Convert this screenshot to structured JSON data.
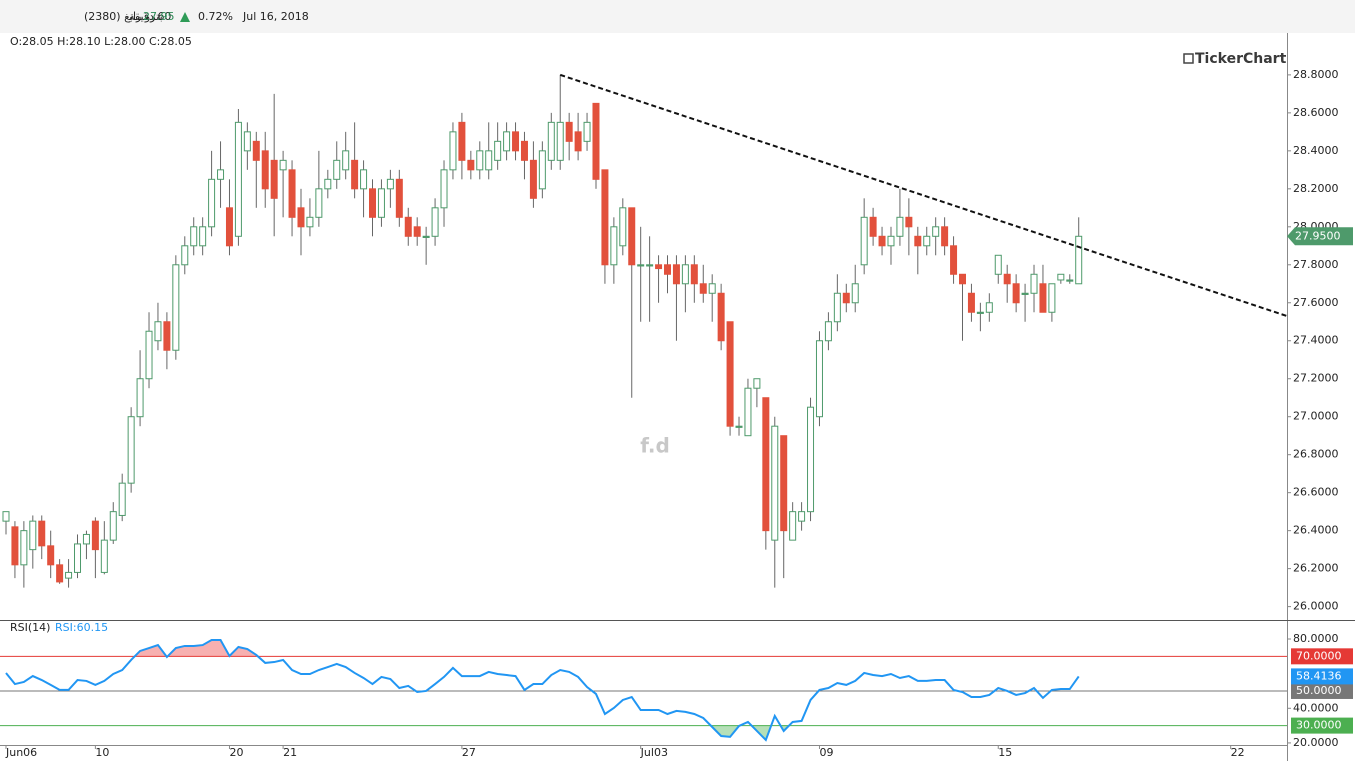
{
  "header": {
    "symbol": "بترو رابغ (2380)",
    "interval": "60 دقيقة",
    "last": "27.95",
    "change": "0.72%",
    "date": "Jul 16, 2018",
    "ohlc": "O:28.05 H:28.10 L:28.00 C:28.05",
    "brand": "TickerChart"
  },
  "chart_data": [
    {
      "type": "candlestick",
      "annotation": "f.d",
      "up_color": "#4e9a6b",
      "down_color": "#e2513c",
      "last_label": "27.9500",
      "x": [
        0,
        1,
        2,
        3,
        4,
        5,
        6,
        7,
        8,
        9,
        10,
        11,
        12,
        13,
        14,
        15,
        16,
        17,
        18,
        19,
        20,
        21,
        22,
        23,
        24,
        25,
        26,
        27,
        28,
        29,
        30,
        31,
        32,
        33,
        34,
        35,
        36,
        37,
        38,
        39,
        40,
        41,
        42,
        43,
        44,
        45,
        46,
        47,
        48,
        49,
        50,
        51,
        52,
        53,
        54,
        55,
        56,
        57,
        58,
        59,
        60,
        61,
        62,
        63,
        64,
        65,
        66,
        67,
        68,
        69,
        70,
        71,
        72,
        73,
        74,
        75,
        76,
        77,
        78,
        79,
        80,
        81,
        82,
        83,
        84,
        85,
        86,
        87,
        88,
        89,
        90,
        91,
        92,
        93,
        94,
        95,
        96,
        97,
        98,
        99,
        100,
        101,
        102,
        103,
        104,
        105,
        106,
        107,
        108,
        109,
        110,
        111,
        112,
        113,
        114,
        115,
        116,
        117,
        118,
        119,
        120
      ],
      "open": [
        26.45,
        26.42,
        26.22,
        26.3,
        26.45,
        26.32,
        26.22,
        26.15,
        26.18,
        26.33,
        26.45,
        26.18,
        26.35,
        26.48,
        26.65,
        27.0,
        27.2,
        27.4,
        27.5,
        27.35,
        27.8,
        27.9,
        27.9,
        28.0,
        28.25,
        28.1,
        27.95,
        28.4,
        28.45,
        28.4,
        28.35,
        28.3,
        28.3,
        28.1,
        28.0,
        28.05,
        28.2,
        28.25,
        28.3,
        28.35,
        28.2,
        28.2,
        28.05,
        28.2,
        28.25,
        28.05,
        28.0,
        27.95,
        27.95,
        28.1,
        28.3,
        28.55,
        28.35,
        28.3,
        28.3,
        28.35,
        28.4,
        28.5,
        28.45,
        28.35,
        28.2,
        28.35,
        28.35,
        28.55,
        28.5,
        28.45,
        28.65,
        28.3,
        27.8,
        27.9,
        28.1,
        27.8,
        27.8,
        27.8,
        27.8,
        27.8,
        27.7,
        27.8,
        27.7,
        27.65,
        27.65,
        27.5,
        26.95,
        26.9,
        27.15,
        27.1,
        26.35,
        26.9,
        26.35,
        26.45,
        26.5,
        27.0,
        27.4,
        27.5,
        27.65,
        27.6,
        27.8,
        28.05,
        27.95,
        27.9,
        27.95,
        28.05,
        27.95,
        27.9,
        27.95,
        28.0,
        27.9,
        27.75,
        27.65,
        27.55,
        27.55,
        27.75,
        27.75,
        27.7,
        27.65,
        27.65,
        27.7,
        27.55,
        27.72,
        27.72,
        27.7
      ],
      "high": [
        26.5,
        26.45,
        26.45,
        26.48,
        26.48,
        26.4,
        26.25,
        26.25,
        26.38,
        26.4,
        26.47,
        26.45,
        26.55,
        26.7,
        27.05,
        27.35,
        27.55,
        27.6,
        27.55,
        27.85,
        27.95,
        28.05,
        28.05,
        28.4,
        28.45,
        28.25,
        28.62,
        28.55,
        28.5,
        28.5,
        28.7,
        28.4,
        28.35,
        28.2,
        28.15,
        28.4,
        28.3,
        28.45,
        28.5,
        28.55,
        28.35,
        28.25,
        28.25,
        28.3,
        28.3,
        28.1,
        28.05,
        28.0,
        28.15,
        28.35,
        28.55,
        28.6,
        28.4,
        28.45,
        28.55,
        28.55,
        28.55,
        28.55,
        28.5,
        28.45,
        28.45,
        28.6,
        28.8,
        28.6,
        28.6,
        28.6,
        28.65,
        28.3,
        28.05,
        28.15,
        28.1,
        28.0,
        27.95,
        27.85,
        27.85,
        27.85,
        27.85,
        27.85,
        27.8,
        27.75,
        27.7,
        27.5,
        27.0,
        27.2,
        27.2,
        27.1,
        27.0,
        26.9,
        26.55,
        26.55,
        27.1,
        27.45,
        27.55,
        27.75,
        27.7,
        27.8,
        28.15,
        28.1,
        28.0,
        28.0,
        28.2,
        28.15,
        28.0,
        28.0,
        28.05,
        28.05,
        27.95,
        27.75,
        27.7,
        27.6,
        27.65,
        27.85,
        27.8,
        27.75,
        27.7,
        27.8,
        27.8,
        27.7,
        27.75,
        27.75,
        28.05
      ],
      "low": [
        26.38,
        26.15,
        26.1,
        26.2,
        26.25,
        26.15,
        26.12,
        26.1,
        26.15,
        26.25,
        26.15,
        26.17,
        26.33,
        26.45,
        26.6,
        26.95,
        27.15,
        27.35,
        27.25,
        27.3,
        27.75,
        27.85,
        27.85,
        27.95,
        28.1,
        27.85,
        27.9,
        28.3,
        28.1,
        28.1,
        27.95,
        28.05,
        27.95,
        27.85,
        27.95,
        28.0,
        28.15,
        28.2,
        28.25,
        28.15,
        28.05,
        27.95,
        28.0,
        28.1,
        28.0,
        27.9,
        27.9,
        27.8,
        27.9,
        28.0,
        28.25,
        28.25,
        28.25,
        28.25,
        28.25,
        28.3,
        28.35,
        28.35,
        28.25,
        28.1,
        28.15,
        28.3,
        28.3,
        28.35,
        28.35,
        28.4,
        28.2,
        27.7,
        27.7,
        27.85,
        27.1,
        27.5,
        27.5,
        27.6,
        27.65,
        27.4,
        27.55,
        27.6,
        27.6,
        27.5,
        27.35,
        26.9,
        26.9,
        26.9,
        27.05,
        26.3,
        26.1,
        26.15,
        26.35,
        26.4,
        26.45,
        26.95,
        27.35,
        27.45,
        27.55,
        27.55,
        27.75,
        27.9,
        27.85,
        27.8,
        27.9,
        27.85,
        27.75,
        27.85,
        27.85,
        27.85,
        27.7,
        27.4,
        27.5,
        27.45,
        27.5,
        27.7,
        27.6,
        27.55,
        27.5,
        27.55,
        27.55,
        27.5,
        27.7,
        27.7,
        27.7
      ],
      "close": [
        26.5,
        26.22,
        26.4,
        26.45,
        26.32,
        26.22,
        26.13,
        26.18,
        26.33,
        26.38,
        26.3,
        26.35,
        26.5,
        26.65,
        27.0,
        27.2,
        27.45,
        27.5,
        27.35,
        27.8,
        27.9,
        28.0,
        28.0,
        28.25,
        28.3,
        27.9,
        28.55,
        28.5,
        28.35,
        28.2,
        28.15,
        28.35,
        28.05,
        28.0,
        28.05,
        28.2,
        28.25,
        28.35,
        28.4,
        28.2,
        28.3,
        28.05,
        28.2,
        28.25,
        28.05,
        27.95,
        27.95,
        27.95,
        28.1,
        28.3,
        28.5,
        28.35,
        28.3,
        28.4,
        28.4,
        28.45,
        28.5,
        28.4,
        28.35,
        28.15,
        28.4,
        28.55,
        28.55,
        28.45,
        28.4,
        28.55,
        28.25,
        27.8,
        28.0,
        28.1,
        27.8,
        27.8,
        27.8,
        27.78,
        27.75,
        27.7,
        27.8,
        27.7,
        27.65,
        27.7,
        27.4,
        26.95,
        26.95,
        27.15,
        27.2,
        26.4,
        26.95,
        26.4,
        26.5,
        26.5,
        27.05,
        27.4,
        27.5,
        27.65,
        27.6,
        27.7,
        28.05,
        27.95,
        27.9,
        27.95,
        28.05,
        28.0,
        27.9,
        27.95,
        28.0,
        27.9,
        27.75,
        27.7,
        27.55,
        27.55,
        27.6,
        27.85,
        27.7,
        27.6,
        27.65,
        27.75,
        27.55,
        27.7,
        27.75,
        27.72,
        27.95
      ],
      "trendline": {
        "x": [
          62,
          143.3
        ],
        "y": [
          28.8,
          27.53
        ]
      },
      "xlim": [
        -0.67,
        143.3
      ],
      "ylim": [
        25.94,
        29.01
      ],
      "yticks": [
        {
          "value": 26.0,
          "label": "26.0000"
        },
        {
          "value": 26.2,
          "label": "26.2000"
        },
        {
          "value": 26.4,
          "label": "26.4000"
        },
        {
          "value": 26.6,
          "label": "26.6000"
        },
        {
          "value": 26.8,
          "label": "26.8000"
        },
        {
          "value": 27.0,
          "label": "27.0000"
        },
        {
          "value": 27.2,
          "label": "27.2000"
        },
        {
          "value": 27.4,
          "label": "27.4000"
        },
        {
          "value": 27.6,
          "label": "27.6000"
        },
        {
          "value": 27.8,
          "label": "27.8000"
        },
        {
          "value": 28.0,
          "label": "28.0000"
        },
        {
          "value": 28.2,
          "label": "28.2000"
        },
        {
          "value": 28.4,
          "label": "28.4000"
        },
        {
          "value": 28.6,
          "label": "28.6000"
        },
        {
          "value": 28.8,
          "label": "28.8000"
        }
      ]
    },
    {
      "type": "line",
      "title": "RSI(14)",
      "subtitle": "RSI:60.15",
      "x": [
        0,
        1,
        2,
        3,
        4,
        5,
        6,
        7,
        8,
        9,
        10,
        11,
        12,
        13,
        14,
        15,
        16,
        17,
        18,
        19,
        20,
        21,
        22,
        23,
        24,
        25,
        26,
        27,
        28,
        29,
        30,
        31,
        32,
        33,
        34,
        35,
        36,
        37,
        38,
        39,
        40,
        41,
        42,
        43,
        44,
        45,
        46,
        47,
        48,
        49,
        50,
        51,
        52,
        53,
        54,
        55,
        56,
        57,
        58,
        59,
        60,
        61,
        62,
        63,
        64,
        65,
        66,
        67,
        68,
        69,
        70,
        71,
        72,
        73,
        74,
        75,
        76,
        77,
        78,
        79,
        80,
        81,
        82,
        83,
        84,
        85,
        86,
        87,
        88,
        89,
        90,
        91,
        92,
        93,
        94,
        95,
        96,
        97,
        98,
        99,
        100,
        101,
        102,
        103,
        104,
        105,
        106,
        107,
        108,
        109,
        110,
        111,
        112,
        113,
        114,
        115,
        116,
        117,
        118,
        119,
        120
      ],
      "series": [
        {
          "name": "RSI",
          "color": "#2196f3",
          "values": [
            60.4,
            54,
            55.2,
            58.6,
            56.3,
            53.5,
            50.6,
            50.6,
            56.3,
            55.8,
            53.5,
            55.8,
            59.8,
            62.1,
            67.9,
            73.1,
            74.8,
            76.5,
            69.6,
            74.8,
            76,
            76,
            76.5,
            79.4,
            79.4,
            70.2,
            75.4,
            74.2,
            70.8,
            66.2,
            66.7,
            67.9,
            62.1,
            59.8,
            59.8,
            62.1,
            63.8,
            65.6,
            63.8,
            60.4,
            57.5,
            54,
            58.1,
            56.9,
            51.7,
            52.9,
            49.4,
            50,
            54,
            58.1,
            63.3,
            58.6,
            58.6,
            58.6,
            61,
            59.8,
            59.2,
            58.6,
            50.6,
            54,
            54,
            59.2,
            62.1,
            61,
            58.1,
            52.3,
            48.3,
            36.7,
            40.2,
            44.8,
            46.5,
            39,
            39,
            39,
            36.7,
            38.5,
            37.9,
            36.7,
            34.4,
            29.2,
            24,
            23.5,
            29.8,
            32.1,
            26.9,
            21.7,
            35.6,
            26.9,
            32.1,
            32.7,
            44.8,
            50.6,
            51.7,
            54.6,
            53.5,
            55.8,
            60.4,
            59.2,
            58.6,
            59.8,
            57.5,
            58.6,
            55.8,
            55.8,
            56.3,
            56.3,
            50.6,
            49.4,
            46.5,
            46.5,
            47.7,
            51.7,
            50,
            47.7,
            48.8,
            51.7,
            46,
            50.6,
            51.1,
            51.1,
            58.4136
          ]
        }
      ],
      "levels": [
        {
          "value": 70,
          "label": "70.0000",
          "color": "#e53935",
          "fill": "#f7b0b0"
        },
        {
          "value": 50,
          "label": "50.0000",
          "color": "#777777"
        },
        {
          "value": 30,
          "label": "30.0000",
          "color": "#4caf50",
          "fill": "#b5e0b8"
        }
      ],
      "xlim": [
        -0.67,
        143.3
      ],
      "ylim": [
        18.8,
        90.4
      ],
      "yticks": [
        {
          "value": 80,
          "label": "80.0000"
        },
        {
          "value": 40,
          "label": "40.0000"
        },
        {
          "value": 20,
          "label": "20.0000"
        }
      ],
      "xticks": [
        {
          "value": 0,
          "label": "Jun06"
        },
        {
          "value": 10,
          "label": "10"
        },
        {
          "value": 25,
          "label": "20"
        },
        {
          "value": 31,
          "label": "21"
        },
        {
          "value": 51,
          "label": "27"
        },
        {
          "value": 71,
          "label": "Jul03"
        },
        {
          "value": 91,
          "label": "09"
        },
        {
          "value": 111,
          "label": "15"
        },
        {
          "value": 137,
          "label": "22"
        }
      ]
    }
  ]
}
